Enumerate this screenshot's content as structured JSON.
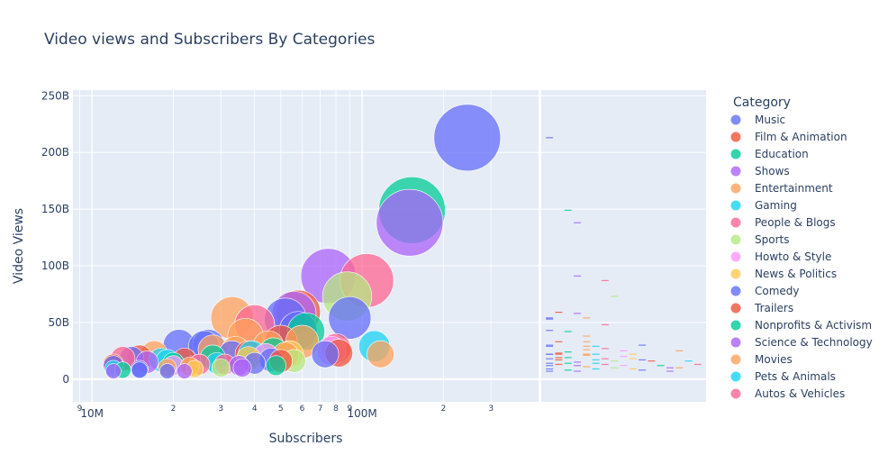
{
  "chart_data": {
    "type": "scatter",
    "title": "Video views and Subscribers By Categories",
    "xlabel": "Subscribers",
    "ylabel": "Video Views",
    "x_scale": "log",
    "xlim": [
      8.5,
      450
    ],
    "ylim": [
      -20,
      255
    ],
    "x_unit": "million subscribers",
    "y_unit": "billion views",
    "x_ticks": [
      {
        "v": 9,
        "label": "9"
      },
      {
        "v": 10,
        "label": "10M"
      },
      {
        "v": 20,
        "label": "2"
      },
      {
        "v": 30,
        "label": "3"
      },
      {
        "v": 40,
        "label": "4"
      },
      {
        "v": 50,
        "label": "5"
      },
      {
        "v": 60,
        "label": "6"
      },
      {
        "v": 70,
        "label": "7"
      },
      {
        "v": 80,
        "label": "8"
      },
      {
        "v": 90,
        "label": "9"
      },
      {
        "v": 100,
        "label": "100M"
      },
      {
        "v": 200,
        "label": "2"
      },
      {
        "v": 300,
        "label": "3"
      }
    ],
    "y_ticks": [
      {
        "v": 0,
        "label": "0"
      },
      {
        "v": 50,
        "label": "50B"
      },
      {
        "v": 100,
        "label": "100B"
      },
      {
        "v": 150,
        "label": "150B"
      },
      {
        "v": 200,
        "label": "200B"
      },
      {
        "v": 250,
        "label": "250B"
      }
    ],
    "legend": {
      "title": "Category",
      "placement": "right"
    },
    "marginal": "rug",
    "series": [
      {
        "name": "Music",
        "color": "#636efa",
        "points": [
          [
            245,
            213
          ],
          [
            52,
            53
          ],
          [
            90,
            54
          ],
          [
            26,
            29
          ],
          [
            21,
            30
          ],
          [
            14,
            18
          ],
          [
            33,
            22
          ],
          [
            12,
            12
          ],
          [
            19,
            7
          ],
          [
            40,
            14
          ],
          [
            73,
            22
          ],
          [
            15,
            9
          ],
          [
            58,
            43
          ]
        ]
      },
      {
        "name": "Film & Animation",
        "color": "#EF553B",
        "points": [
          [
            58,
            59
          ],
          [
            50,
            33
          ],
          [
            82,
            23
          ],
          [
            15,
            19
          ],
          [
            22,
            17
          ],
          [
            38,
            22
          ],
          [
            12,
            13
          ]
        ]
      },
      {
        "name": "Education",
        "color": "#00cc96",
        "points": [
          [
            153,
            149
          ],
          [
            62,
            42
          ],
          [
            47,
            24
          ],
          [
            20,
            14
          ],
          [
            28,
            19
          ],
          [
            13,
            8
          ]
        ]
      },
      {
        "name": "Shows",
        "color": "#ab63fa",
        "points": [
          [
            150,
            138
          ],
          [
            75,
            91
          ],
          [
            56,
            58
          ],
          [
            16,
            15
          ],
          [
            35,
            12
          ],
          [
            12,
            7
          ]
        ]
      },
      {
        "name": "Entertainment",
        "color": "#FFA15A",
        "points": [
          [
            33,
            54
          ],
          [
            37,
            38
          ],
          [
            60,
            33
          ],
          [
            28,
            26
          ],
          [
            52,
            21
          ],
          [
            17,
            22
          ],
          [
            23,
            11
          ],
          [
            45,
            29
          ],
          [
            117,
            22
          ]
        ]
      },
      {
        "name": "Gaming",
        "color": "#19d3f3",
        "points": [
          [
            111,
            29
          ],
          [
            39,
            22
          ],
          [
            29,
            14
          ],
          [
            12,
            9
          ],
          [
            18,
            17
          ]
        ]
      },
      {
        "name": "People & Blogs",
        "color": "#FF6692",
        "points": [
          [
            104,
            87
          ],
          [
            40,
            48
          ],
          [
            80,
            27
          ],
          [
            13,
            18
          ],
          [
            25,
            13
          ]
        ]
      },
      {
        "name": "Sports",
        "color": "#B6E880",
        "points": [
          [
            88,
            73
          ],
          [
            56,
            16
          ],
          [
            30,
            10
          ]
        ]
      },
      {
        "name": "Howto & Style",
        "color": "#FF97FF",
        "points": [
          [
            77,
            25
          ],
          [
            44,
            20
          ],
          [
            20,
            12
          ]
        ]
      },
      {
        "name": "News & Politics",
        "color": "#FECB52",
        "points": [
          [
            54,
            22
          ],
          [
            38,
            18
          ],
          [
            24,
            9
          ]
        ]
      },
      {
        "name": "Comedy",
        "color": "#636efa",
        "points": [
          [
            27,
            30
          ],
          [
            46,
            17
          ],
          [
            15,
            8
          ]
        ]
      },
      {
        "name": "Trailers",
        "color": "#EF553B",
        "points": [
          [
            50,
            16
          ]
        ]
      },
      {
        "name": "Nonprofits & Activism",
        "color": "#00cc96",
        "points": [
          [
            48,
            12
          ]
        ]
      },
      {
        "name": "Science & Technology",
        "color": "#ab63fa",
        "points": [
          [
            36,
            10
          ],
          [
            22,
            7
          ]
        ]
      },
      {
        "name": "Movies",
        "color": "#FFA15A",
        "points": [
          [
            34,
            25
          ],
          [
            19,
            10
          ]
        ]
      },
      {
        "name": "Pets & Animals",
        "color": "#19d3f3",
        "points": [
          [
            19,
            16
          ]
        ]
      },
      {
        "name": "Autos & Vehicles",
        "color": "#FF6692",
        "points": [
          [
            31,
            13
          ]
        ]
      }
    ]
  }
}
